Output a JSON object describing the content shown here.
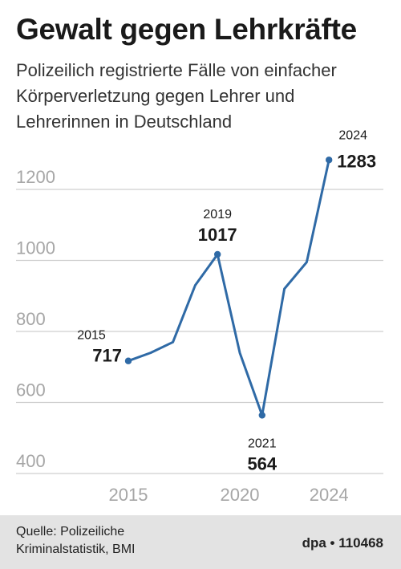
{
  "title": "Gewalt gegen Lehrkräfte",
  "subtitle": "Polizeilich registrierte Fälle von einfacher Körperverletzung gegen Lehrer und Lehrerinnen in Deutschland",
  "footer": {
    "source_line1": "Quelle: Polizeiliche",
    "source_line2": "Kriminalstatistik, BMI",
    "credit": "dpa • 110468"
  },
  "colors": {
    "line": "#2f6aa6",
    "grid": "#cfcfcf",
    "tick_label": "#a6a6a6"
  },
  "chart_data": {
    "type": "line",
    "title": "Gewalt gegen Lehrkräfte",
    "xlabel": "",
    "ylabel": "",
    "x": [
      2015,
      2016,
      2017,
      2018,
      2019,
      2020,
      2021,
      2022,
      2023,
      2024
    ],
    "series": [
      {
        "values": [
          717,
          740,
          770,
          930,
          1017,
          740,
          564,
          920,
          995,
          1283
        ]
      }
    ],
    "xlim": [
      2014,
      2026
    ],
    "ylim": [
      400,
      1300
    ],
    "y_ticks": [
      400,
      600,
      800,
      1000,
      1200
    ],
    "x_ticks": [
      2015,
      2020,
      2024
    ],
    "grid": true,
    "annotations": [
      {
        "year": "2015",
        "value": "717"
      },
      {
        "year": "2019",
        "value": "1017"
      },
      {
        "year": "2021",
        "value": "564"
      },
      {
        "year": "2024",
        "value": "1283"
      }
    ]
  }
}
